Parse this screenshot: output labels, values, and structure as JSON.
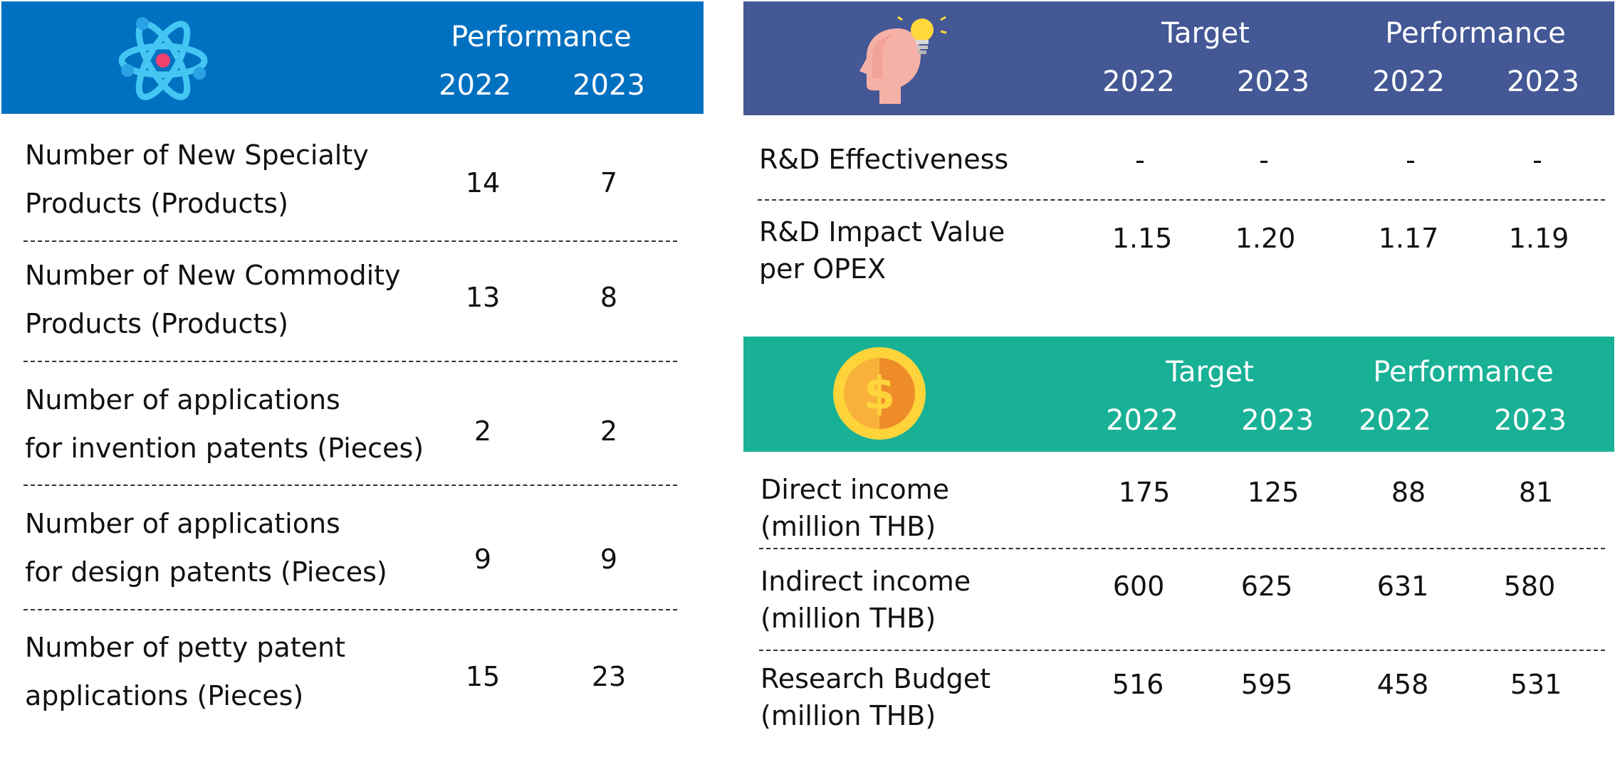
{
  "colors": {
    "blue": "#0070C0",
    "indigo": "#445896",
    "teal": "#19B196"
  },
  "innovation": {
    "icon": "atom-icon",
    "header": {
      "performance": "Performance",
      "y1": "2022",
      "y2": "2023"
    },
    "rows": [
      {
        "label_l1": "Number of New Specialty",
        "label_l2": "Products (Products)",
        "v2022": "14",
        "v2023": "7"
      },
      {
        "label_l1": "Number of New Commodity",
        "label_l2": "Products (Products)",
        "v2022": "13",
        "v2023": "8"
      },
      {
        "label_l1": "Number of applications",
        "label_l2": "for invention patents (Pieces)",
        "v2022": "2",
        "v2023": "2"
      },
      {
        "label_l1": "Number of applications",
        "label_l2": "for design patents (Pieces)",
        "v2022": "9",
        "v2023": "9"
      },
      {
        "label_l1": "Number of petty patent",
        "label_l2": "applications (Pieces)",
        "v2022": "15",
        "v2023": "23"
      }
    ]
  },
  "rd": {
    "icon": "head-lightbulb-icon",
    "header": {
      "target": "Target",
      "performance": "Performance",
      "t1": "2022",
      "t2": "2023",
      "p1": "2022",
      "p2": "2023"
    },
    "rows": [
      {
        "label_l1": "R&D Effectiveness",
        "label_l2": "",
        "t2022": "-",
        "t2023": "-",
        "p2022": "-",
        "p2023": "-"
      },
      {
        "label_l1": "R&D Impact Value",
        "label_l2": "per OPEX",
        "t2022": "1.15",
        "t2023": "1.20",
        "p2022": "1.17",
        "p2023": "1.19"
      }
    ]
  },
  "income": {
    "icon": "dollar-coin-icon",
    "header": {
      "target": "Target",
      "performance": "Performance",
      "t1": "2022",
      "t2": "2023",
      "p1": "2022",
      "p2": "2023"
    },
    "rows": [
      {
        "label_l1": "Direct income",
        "label_l2": "(million THB)",
        "t2022": "175",
        "t2023": "125",
        "p2022": "88",
        "p2023": "81"
      },
      {
        "label_l1": "Indirect income",
        "label_l2": "(million THB)",
        "t2022": "600",
        "t2023": "625",
        "p2022": "631",
        "p2023": "580"
      },
      {
        "label_l1": "Research Budget",
        "label_l2": "(million THB)",
        "t2022": "516",
        "t2023": "595",
        "p2022": "458",
        "p2023": "531"
      }
    ]
  }
}
